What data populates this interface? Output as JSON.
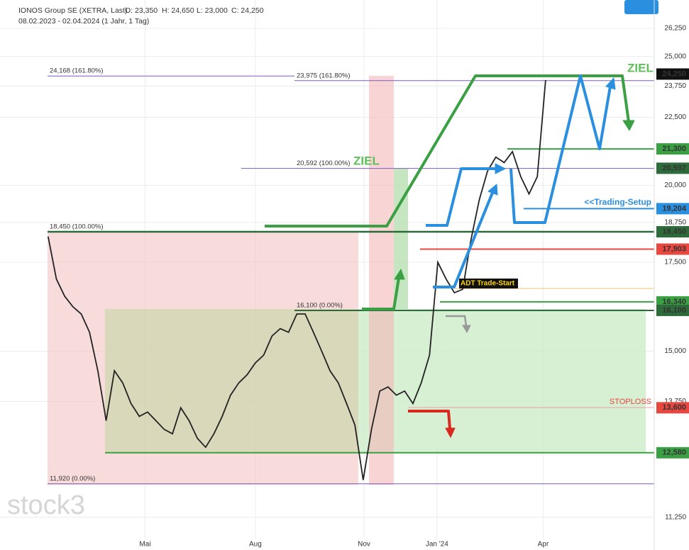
{
  "chart_data": {
    "type": "line",
    "title": "IONOS Group SE (XETRA, Last)",
    "ohlc": [
      "O: 23,350",
      "H: 24,650",
      "L: 23,000",
      "C: 24,250"
    ],
    "subtitle": "08.02.2023 - 02.04.2024  (1 Jahr, 1 Tag)",
    "watermark": "stock3",
    "log_scale": true,
    "grid": true,
    "xlim": [
      -5.8,
      73.1
    ],
    "xticks": [
      {
        "value": 11.7,
        "label": "Mai"
      },
      {
        "value": 25,
        "label": "Aug"
      },
      {
        "value": 38.1,
        "label": "Nov"
      },
      {
        "value": 46.9,
        "label": "Jan '24"
      },
      {
        "value": 59.7,
        "label": "Apr"
      }
    ],
    "ylim": [
      10840,
      27570
    ],
    "yticks": [
      {
        "value": 11250,
        "label": "11,250"
      },
      {
        "value": 13750,
        "label": "13,750"
      },
      {
        "value": 15000,
        "label": "15,000"
      },
      {
        "value": 17500,
        "label": "17,500"
      },
      {
        "value": 18750,
        "label": "18,750"
      },
      {
        "value": 20000,
        "label": "20,000"
      },
      {
        "value": 22500,
        "label": "22,500"
      },
      {
        "value": 23750,
        "label": "23,750"
      },
      {
        "value": 25000,
        "label": "25,000"
      },
      {
        "value": 26250,
        "label": "26,250"
      }
    ],
    "x": [
      0,
      1,
      2,
      3,
      4,
      5,
      6,
      7,
      8,
      9,
      10,
      11,
      12,
      13,
      14,
      15,
      16,
      17,
      18,
      19,
      20,
      21,
      22,
      23,
      24,
      25,
      26,
      27,
      28,
      29,
      30,
      31,
      32,
      33,
      34,
      35,
      36,
      37,
      38,
      39,
      40,
      41,
      42,
      43,
      44,
      45,
      46,
      47,
      48,
      49,
      50,
      51,
      52,
      53,
      54,
      55,
      56,
      57,
      58,
      59,
      60
    ],
    "series": [
      {
        "name": "IONOS Group SE",
        "color": "#222222",
        "values": [
          18300,
          17000,
          16500,
          16200,
          16000,
          15500,
          14500,
          13300,
          14500,
          14200,
          13700,
          13400,
          13500,
          13300,
          13100,
          13000,
          13600,
          13300,
          12900,
          12700,
          13000,
          13400,
          13900,
          14200,
          14400,
          14700,
          14900,
          15400,
          15600,
          15500,
          16000,
          16000,
          15500,
          15000,
          14500,
          14200,
          13700,
          13200,
          12000,
          13100,
          14000,
          14100,
          13900,
          14000,
          13700,
          14200,
          14900,
          17500,
          17000,
          16600,
          16700,
          18200,
          19500,
          20500,
          21000,
          20800,
          21200,
          20300,
          19700,
          20300,
          24000
        ]
      }
    ],
    "fib_levels": [
      {
        "value": 24168,
        "label": "24,168 (161.80%)",
        "color": "#7b5cc4"
      },
      {
        "value": 23975,
        "label": "23,975 (161.80%)",
        "color": "#7b5cc4"
      },
      {
        "value": 20592,
        "label": "20,592 (100.00%)",
        "color": "#7b5cc4"
      },
      {
        "value": 18450,
        "label": "18,450 (100.00%)",
        "color": "#2e6b3a"
      },
      {
        "value": 16100,
        "label": "16,100 (0.00%)",
        "color": "#7b5cc4"
      },
      {
        "value": 11920,
        "label": "11,920 (0.00%)",
        "color": "#7b5cc4"
      }
    ],
    "price_tags": [
      {
        "value": 24250,
        "label": "24,250",
        "color": "#111111"
      },
      {
        "value": 21300,
        "label": "21,300",
        "color": "#3aa043"
      },
      {
        "value": 20597,
        "label": "20,597",
        "color": "#2e6b3a"
      },
      {
        "value": 19204,
        "label": "19,204",
        "color": "#2b8fe0"
      },
      {
        "value": 18450,
        "label": "18,450",
        "color": "#2e6b3a"
      },
      {
        "value": 17903,
        "label": "17,903",
        "color": "#e8473f"
      },
      {
        "value": 16340,
        "label": "16,340",
        "color": "#3aa043"
      },
      {
        "value": 16100,
        "label": "16,100",
        "color": "#2e6b3a"
      },
      {
        "value": 13600,
        "label": "13,600",
        "color": "#e8473f"
      },
      {
        "value": 12580,
        "label": "12,580",
        "color": "#3aa043"
      }
    ],
    "annotations": {
      "ziel_1": "ZIEL",
      "ziel_2": "ZIEL",
      "trading_setup": "<<Trading-Setup",
      "trade_start": "ADT Trade-Start",
      "stoploss": "STOPLOSS"
    }
  }
}
